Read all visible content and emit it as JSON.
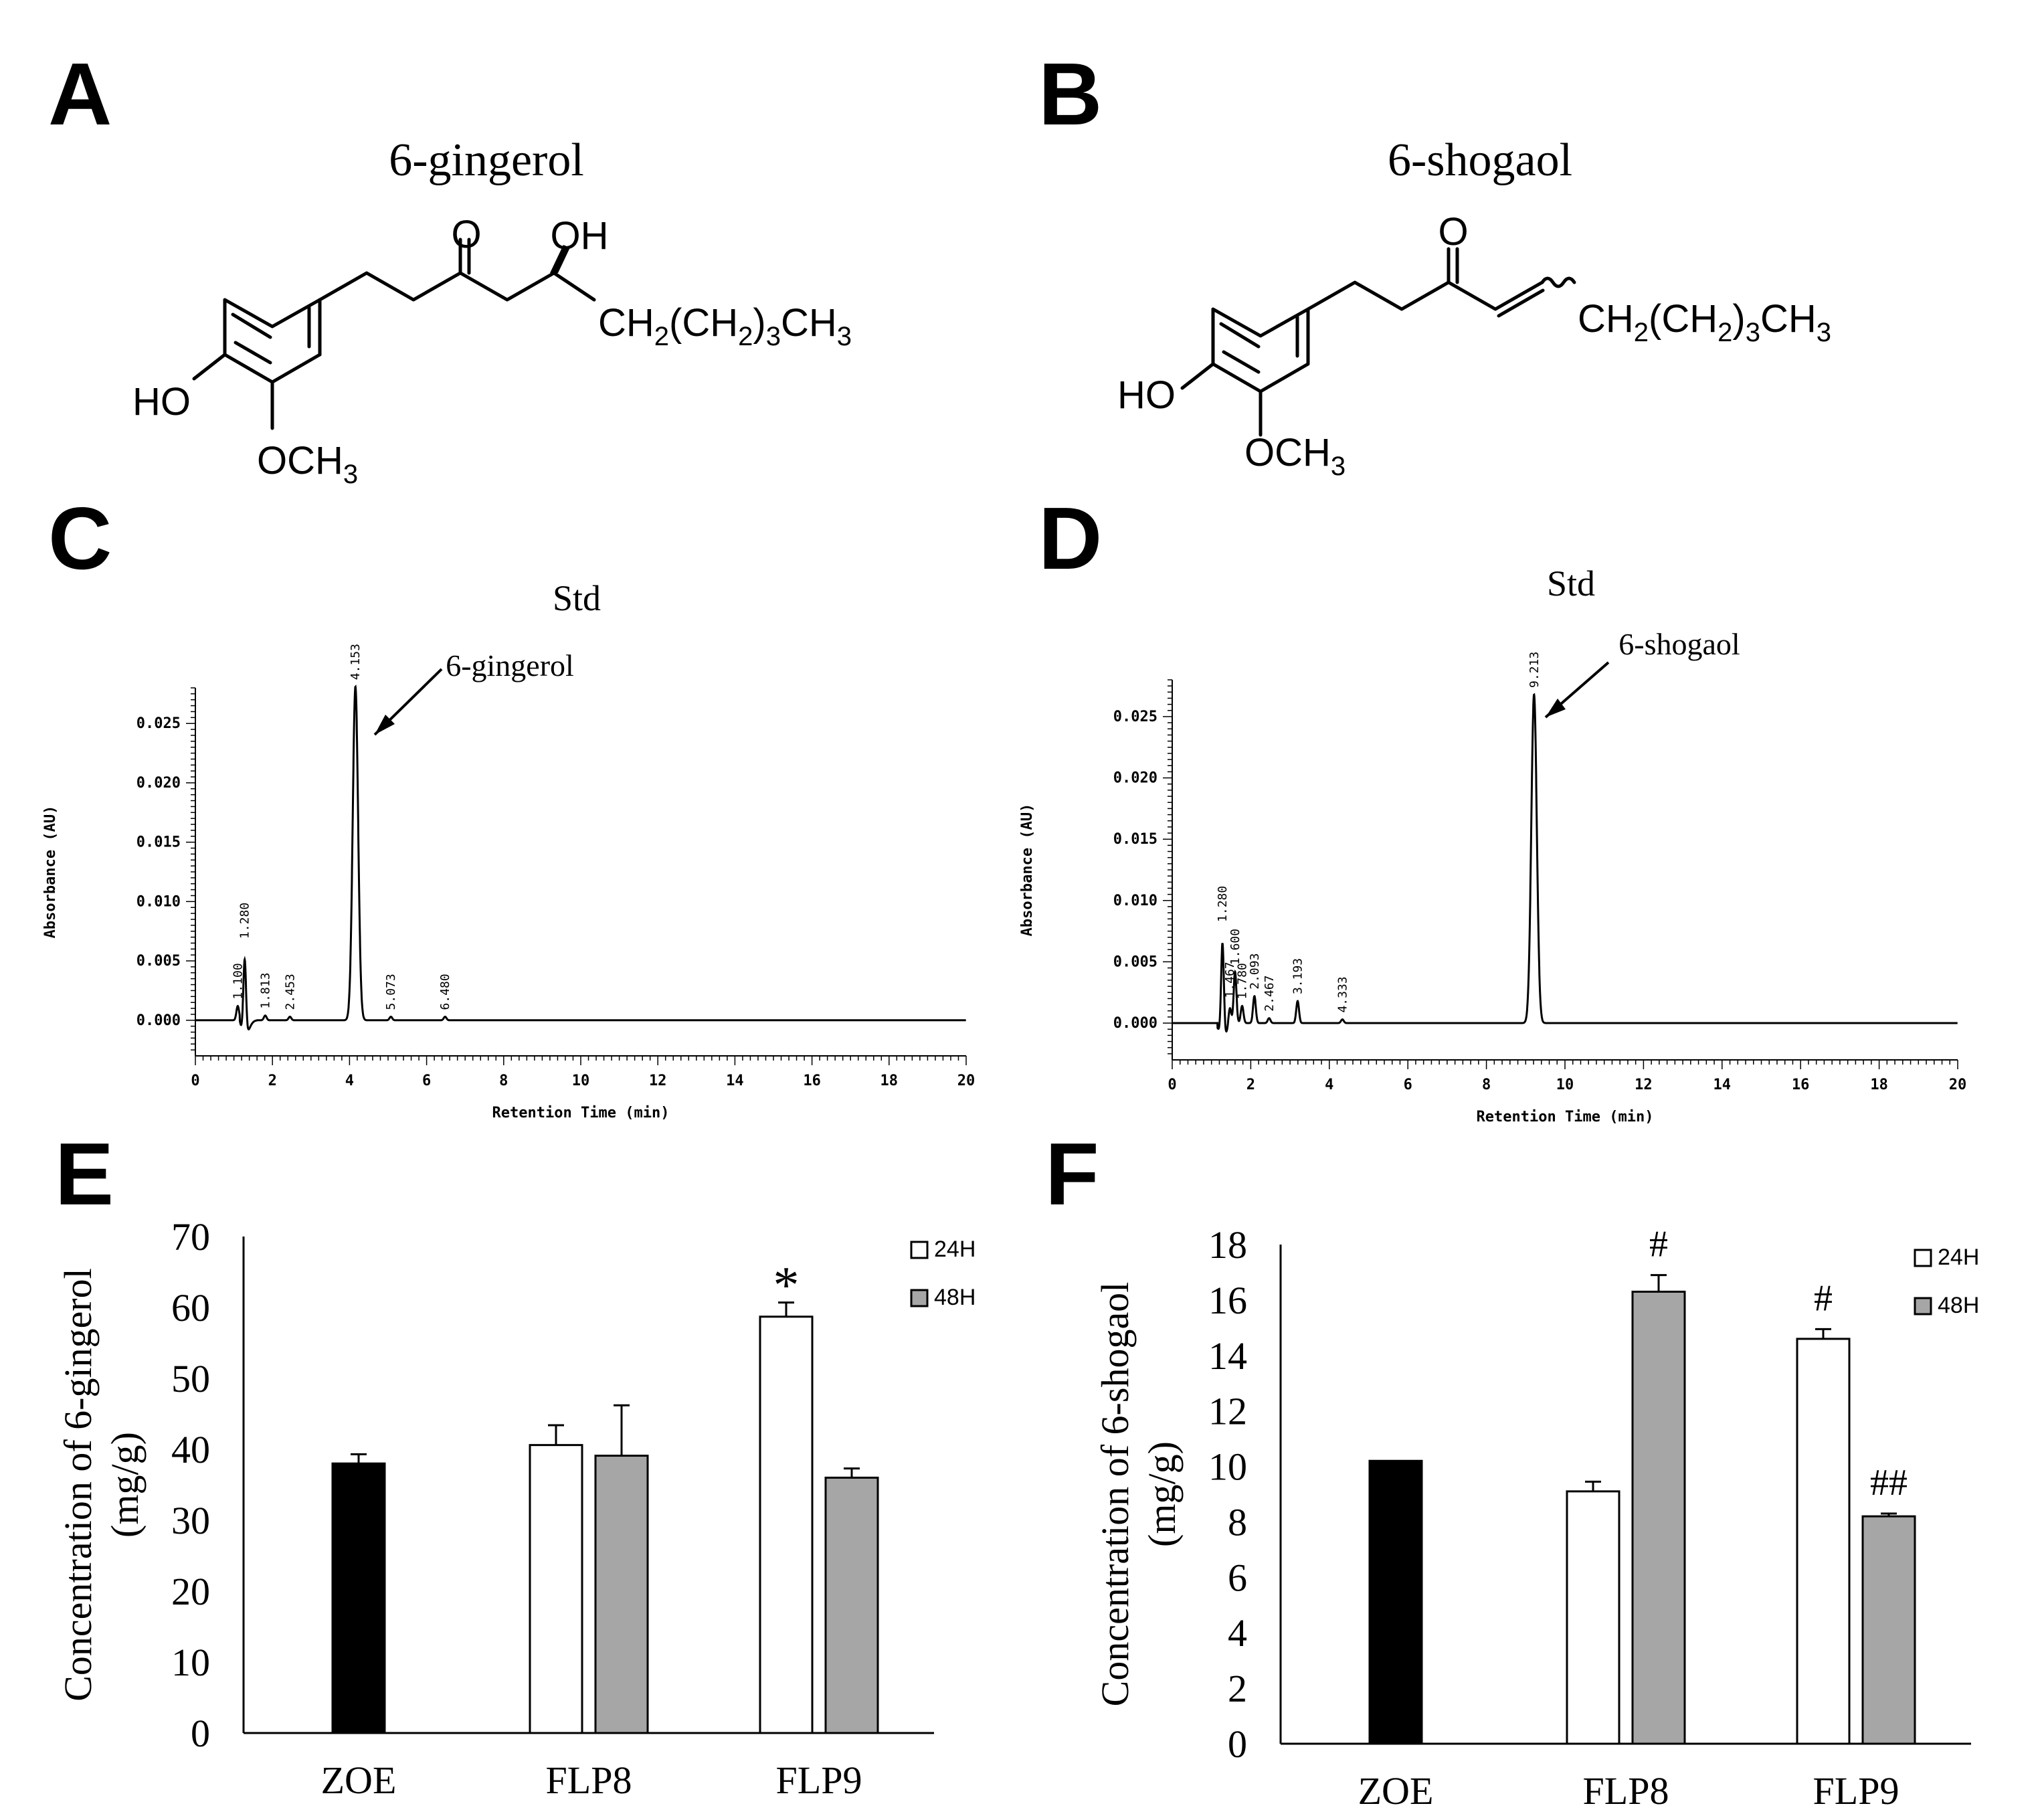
{
  "panels": {
    "A": {
      "letter": "A",
      "title": "6-gingerol",
      "labels": {
        "O": "O",
        "OH": "OH",
        "HO": "HO",
        "OCH": "OCH",
        "three": "3",
        "CH": "CH",
        "two": "2",
        "open": "(CH",
        "close": ")",
        "three2": "3",
        "CH3": "CH",
        "three3": "3"
      }
    },
    "B": {
      "letter": "B",
      "title": "6-shogaol",
      "labels": {
        "O": "O",
        "HO": "HO",
        "OCH": "OCH",
        "three": "3",
        "CH": "CH",
        "two": "2",
        "open": "(CH",
        "close": ")",
        "three2": "3",
        "CH3": "CH",
        "three3": "3"
      }
    },
    "C": {
      "letter": "C",
      "title": "Std",
      "peak_label": "6-gingerol"
    },
    "D": {
      "letter": "D",
      "title": "Std",
      "peak_label": "6-shogaol"
    },
    "E": {
      "letter": "E"
    },
    "F": {
      "letter": "F"
    }
  },
  "chart_data": [
    {
      "panel": "C",
      "type": "line",
      "title": "Std",
      "xlabel": "Retention Time (min)",
      "ylabel": "Absorbance (AU)",
      "xlim": [
        0,
        20
      ],
      "ylim": [
        -0.003,
        0.028
      ],
      "xticks": [
        "0",
        "2",
        "4",
        "6",
        "8",
        "10",
        "12",
        "14",
        "16",
        "18",
        "20"
      ],
      "yticks": [
        "0.000",
        "0.005",
        "0.010",
        "0.015",
        "0.020",
        "0.025"
      ],
      "peaks": [
        {
          "rt": 1.1,
          "height": 0.0012,
          "label": "1.100"
        },
        {
          "rt": 1.28,
          "height": 0.0063,
          "label": "1.280"
        },
        {
          "rt": 1.813,
          "height": 0.0004,
          "label": "1.813"
        },
        {
          "rt": 2.453,
          "height": 0.0003,
          "label": "2.453"
        },
        {
          "rt": 4.153,
          "height": 0.0281,
          "label": "4.153"
        },
        {
          "rt": 5.073,
          "height": 0.0003,
          "label": "5.073"
        },
        {
          "rt": 6.48,
          "height": 0.0003,
          "label": "6.480"
        }
      ]
    },
    {
      "panel": "D",
      "type": "line",
      "title": "Std",
      "xlabel": "Retention Time (min)",
      "ylabel": "Absorbance (AU)",
      "xlim": [
        0,
        20
      ],
      "ylim": [
        -0.003,
        0.028
      ],
      "xticks": [
        "0",
        "2",
        "4",
        "6",
        "8",
        "10",
        "12",
        "14",
        "16",
        "18",
        "20"
      ],
      "yticks": [
        "0.000",
        "0.005",
        "0.010",
        "0.015",
        "0.020",
        "0.025"
      ],
      "peaks": [
        {
          "rt": 1.28,
          "height": 0.0077,
          "label": "1.280"
        },
        {
          "rt": 1.467,
          "height": 0.0015,
          "label": "1.467"
        },
        {
          "rt": 1.6,
          "height": 0.0042,
          "label": "1.600"
        },
        {
          "rt": 1.78,
          "height": 0.0014,
          "label": "1.780"
        },
        {
          "rt": 2.093,
          "height": 0.0022,
          "label": "2.093"
        },
        {
          "rt": 2.467,
          "height": 0.0004,
          "label": "2.467"
        },
        {
          "rt": 3.193,
          "height": 0.0018,
          "label": "3.193"
        },
        {
          "rt": 4.333,
          "height": 0.0003,
          "label": "4.333"
        },
        {
          "rt": 9.213,
          "height": 0.0268,
          "label": "9.213"
        }
      ]
    },
    {
      "panel": "E",
      "type": "bar",
      "ylabel": "Concentration of 6-gingerol",
      "ylabel2": "(mg/g)",
      "ylim": [
        0,
        70
      ],
      "yticks": [
        "0",
        "10",
        "20",
        "30",
        "40",
        "50",
        "60",
        "70"
      ],
      "categories": [
        "ZOE",
        "FLP8",
        "FLP9"
      ],
      "bars": [
        {
          "category": "ZOE",
          "series": "ZOE",
          "value": 38.0,
          "error": 1.3,
          "annotation": ""
        },
        {
          "category": "FLP8",
          "series": "24H",
          "value": 40.6,
          "error": 2.8,
          "annotation": ""
        },
        {
          "category": "FLP8",
          "series": "48H",
          "value": 39.1,
          "error": 7.1,
          "annotation": ""
        },
        {
          "category": "FLP9",
          "series": "24H",
          "value": 58.7,
          "error": 2.0,
          "annotation": "*"
        },
        {
          "category": "FLP9",
          "series": "48H",
          "value": 36.0,
          "error": 1.3,
          "annotation": ""
        }
      ],
      "legend": [
        {
          "name": "24H",
          "color": "#ffffff"
        },
        {
          "name": "48H",
          "color": "#a6a6a6"
        }
      ],
      "colors": {
        "ZOE": "#000000",
        "24H": "#ffffff",
        "48H": "#a6a6a6"
      }
    },
    {
      "panel": "F",
      "type": "bar",
      "ylabel": "Concentration of 6-shogaol",
      "ylabel2": "(mg/g)",
      "ylim": [
        0,
        18
      ],
      "yticks": [
        "0",
        "2",
        "4",
        "6",
        "8",
        "10",
        "12",
        "14",
        "16",
        "18"
      ],
      "categories": [
        "ZOE",
        "FLP8",
        "FLP9"
      ],
      "bars": [
        {
          "category": "ZOE",
          "series": "ZOE",
          "value": 10.2,
          "error": 0.0,
          "annotation": ""
        },
        {
          "category": "FLP8",
          "series": "24H",
          "value": 9.1,
          "error": 0.35,
          "annotation": ""
        },
        {
          "category": "FLP8",
          "series": "48H",
          "value": 16.3,
          "error": 0.6,
          "annotation": "#"
        },
        {
          "category": "FLP9",
          "series": "24H",
          "value": 14.6,
          "error": 0.35,
          "annotation": "#"
        },
        {
          "category": "FLP9",
          "series": "48H",
          "value": 8.2,
          "error": 0.1,
          "annotation": "##"
        }
      ],
      "legend": [
        {
          "name": "24H",
          "color": "#ffffff"
        },
        {
          "name": "48H",
          "color": "#a6a6a6"
        }
      ],
      "colors": {
        "ZOE": "#000000",
        "24H": "#ffffff",
        "48H": "#a6a6a6"
      }
    }
  ]
}
